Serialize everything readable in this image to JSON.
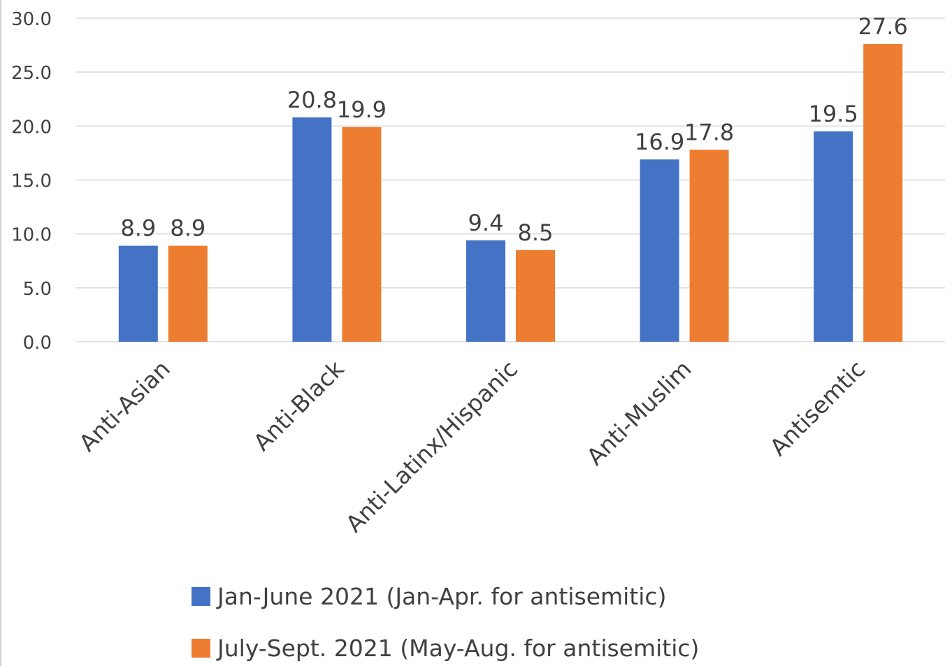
{
  "chart_data": {
    "type": "bar",
    "title": "",
    "xlabel": "",
    "ylabel": "",
    "ylim": [
      0,
      30
    ],
    "yticks": [
      "0.0",
      "5.0",
      "10.0",
      "15.0",
      "20.0",
      "25.0",
      "30.0"
    ],
    "grid": true,
    "legend_position": "bottom",
    "categories": [
      "Anti-Asian",
      "Anti-Black",
      "Anti-Latinx/Hispanic",
      "Anti-Muslim",
      "Antisemtic"
    ],
    "series": [
      {
        "name": "Jan-June 2021 (Jan-Apr. for antisemitic)",
        "color": "#4472c4",
        "values": [
          8.9,
          20.8,
          9.4,
          16.9,
          19.5
        ],
        "labels": [
          "8.9",
          "20.8",
          "9.4",
          "16.9",
          "19.5"
        ]
      },
      {
        "name": "July-Sept. 2021 (May-Aug. for antisemitic)",
        "color": "#ed7d31",
        "values": [
          8.9,
          19.9,
          8.5,
          17.8,
          27.6
        ],
        "labels": [
          "8.9",
          "19.9",
          "8.5",
          "17.8",
          "27.6"
        ]
      }
    ]
  }
}
